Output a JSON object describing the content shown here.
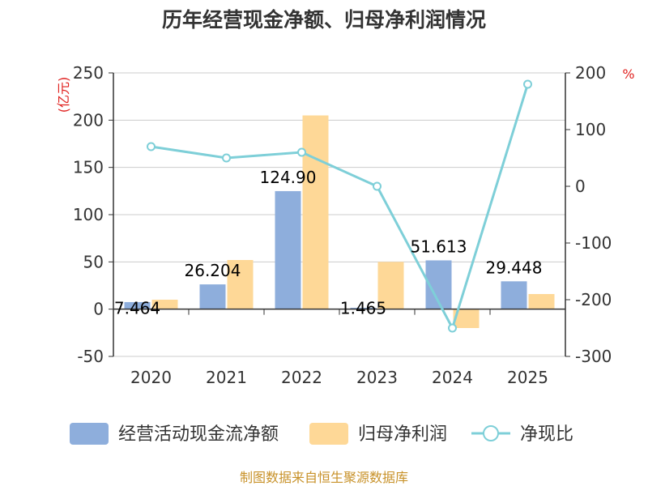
{
  "colors": {
    "cashflow": "#8eaedc",
    "profit": "#fed897",
    "ratio": "#7ecfd8",
    "grid": "#cccccc",
    "axis": "#333333",
    "unit": "#e0201e",
    "source": "#c8922a"
  },
  "chart_data": {
    "type": "bar",
    "title": "历年经营现金净额、归母净利润情况",
    "categories": [
      "2020",
      "2021",
      "2022",
      "2023",
      "2024",
      "2025"
    ],
    "y_left": {
      "unit_label": "(亿元)",
      "ylim": [
        -50,
        250
      ],
      "ticks": [
        "250",
        "200",
        "150",
        "100",
        "50",
        "0",
        "-50"
      ]
    },
    "y_right": {
      "unit_label": "%",
      "ylim": [
        -300,
        200
      ],
      "ticks": [
        "200",
        "100",
        "0",
        "-100",
        "-200",
        "-300"
      ]
    },
    "series": [
      {
        "name": "经营活动现金流净额",
        "type": "bar",
        "axis": "left",
        "values": [
          7.464,
          26.204,
          124.9,
          1.465,
          51.613,
          29.448
        ],
        "labels": [
          "7.464",
          "26.204",
          "124.90",
          "1.465",
          "51.613",
          "29.448"
        ]
      },
      {
        "name": "归母净利润",
        "type": "bar",
        "axis": "left",
        "values": [
          10,
          52,
          205,
          50,
          -20,
          16
        ]
      },
      {
        "name": "净现比",
        "type": "line",
        "axis": "right",
        "values": [
          70,
          50,
          60,
          0,
          -250,
          180
        ]
      }
    ],
    "legend": {
      "position": "bottom",
      "items": [
        "经营活动现金流净额",
        "归母净利润",
        "净现比"
      ]
    },
    "source": "制图数据来自恒生聚源数据库"
  }
}
